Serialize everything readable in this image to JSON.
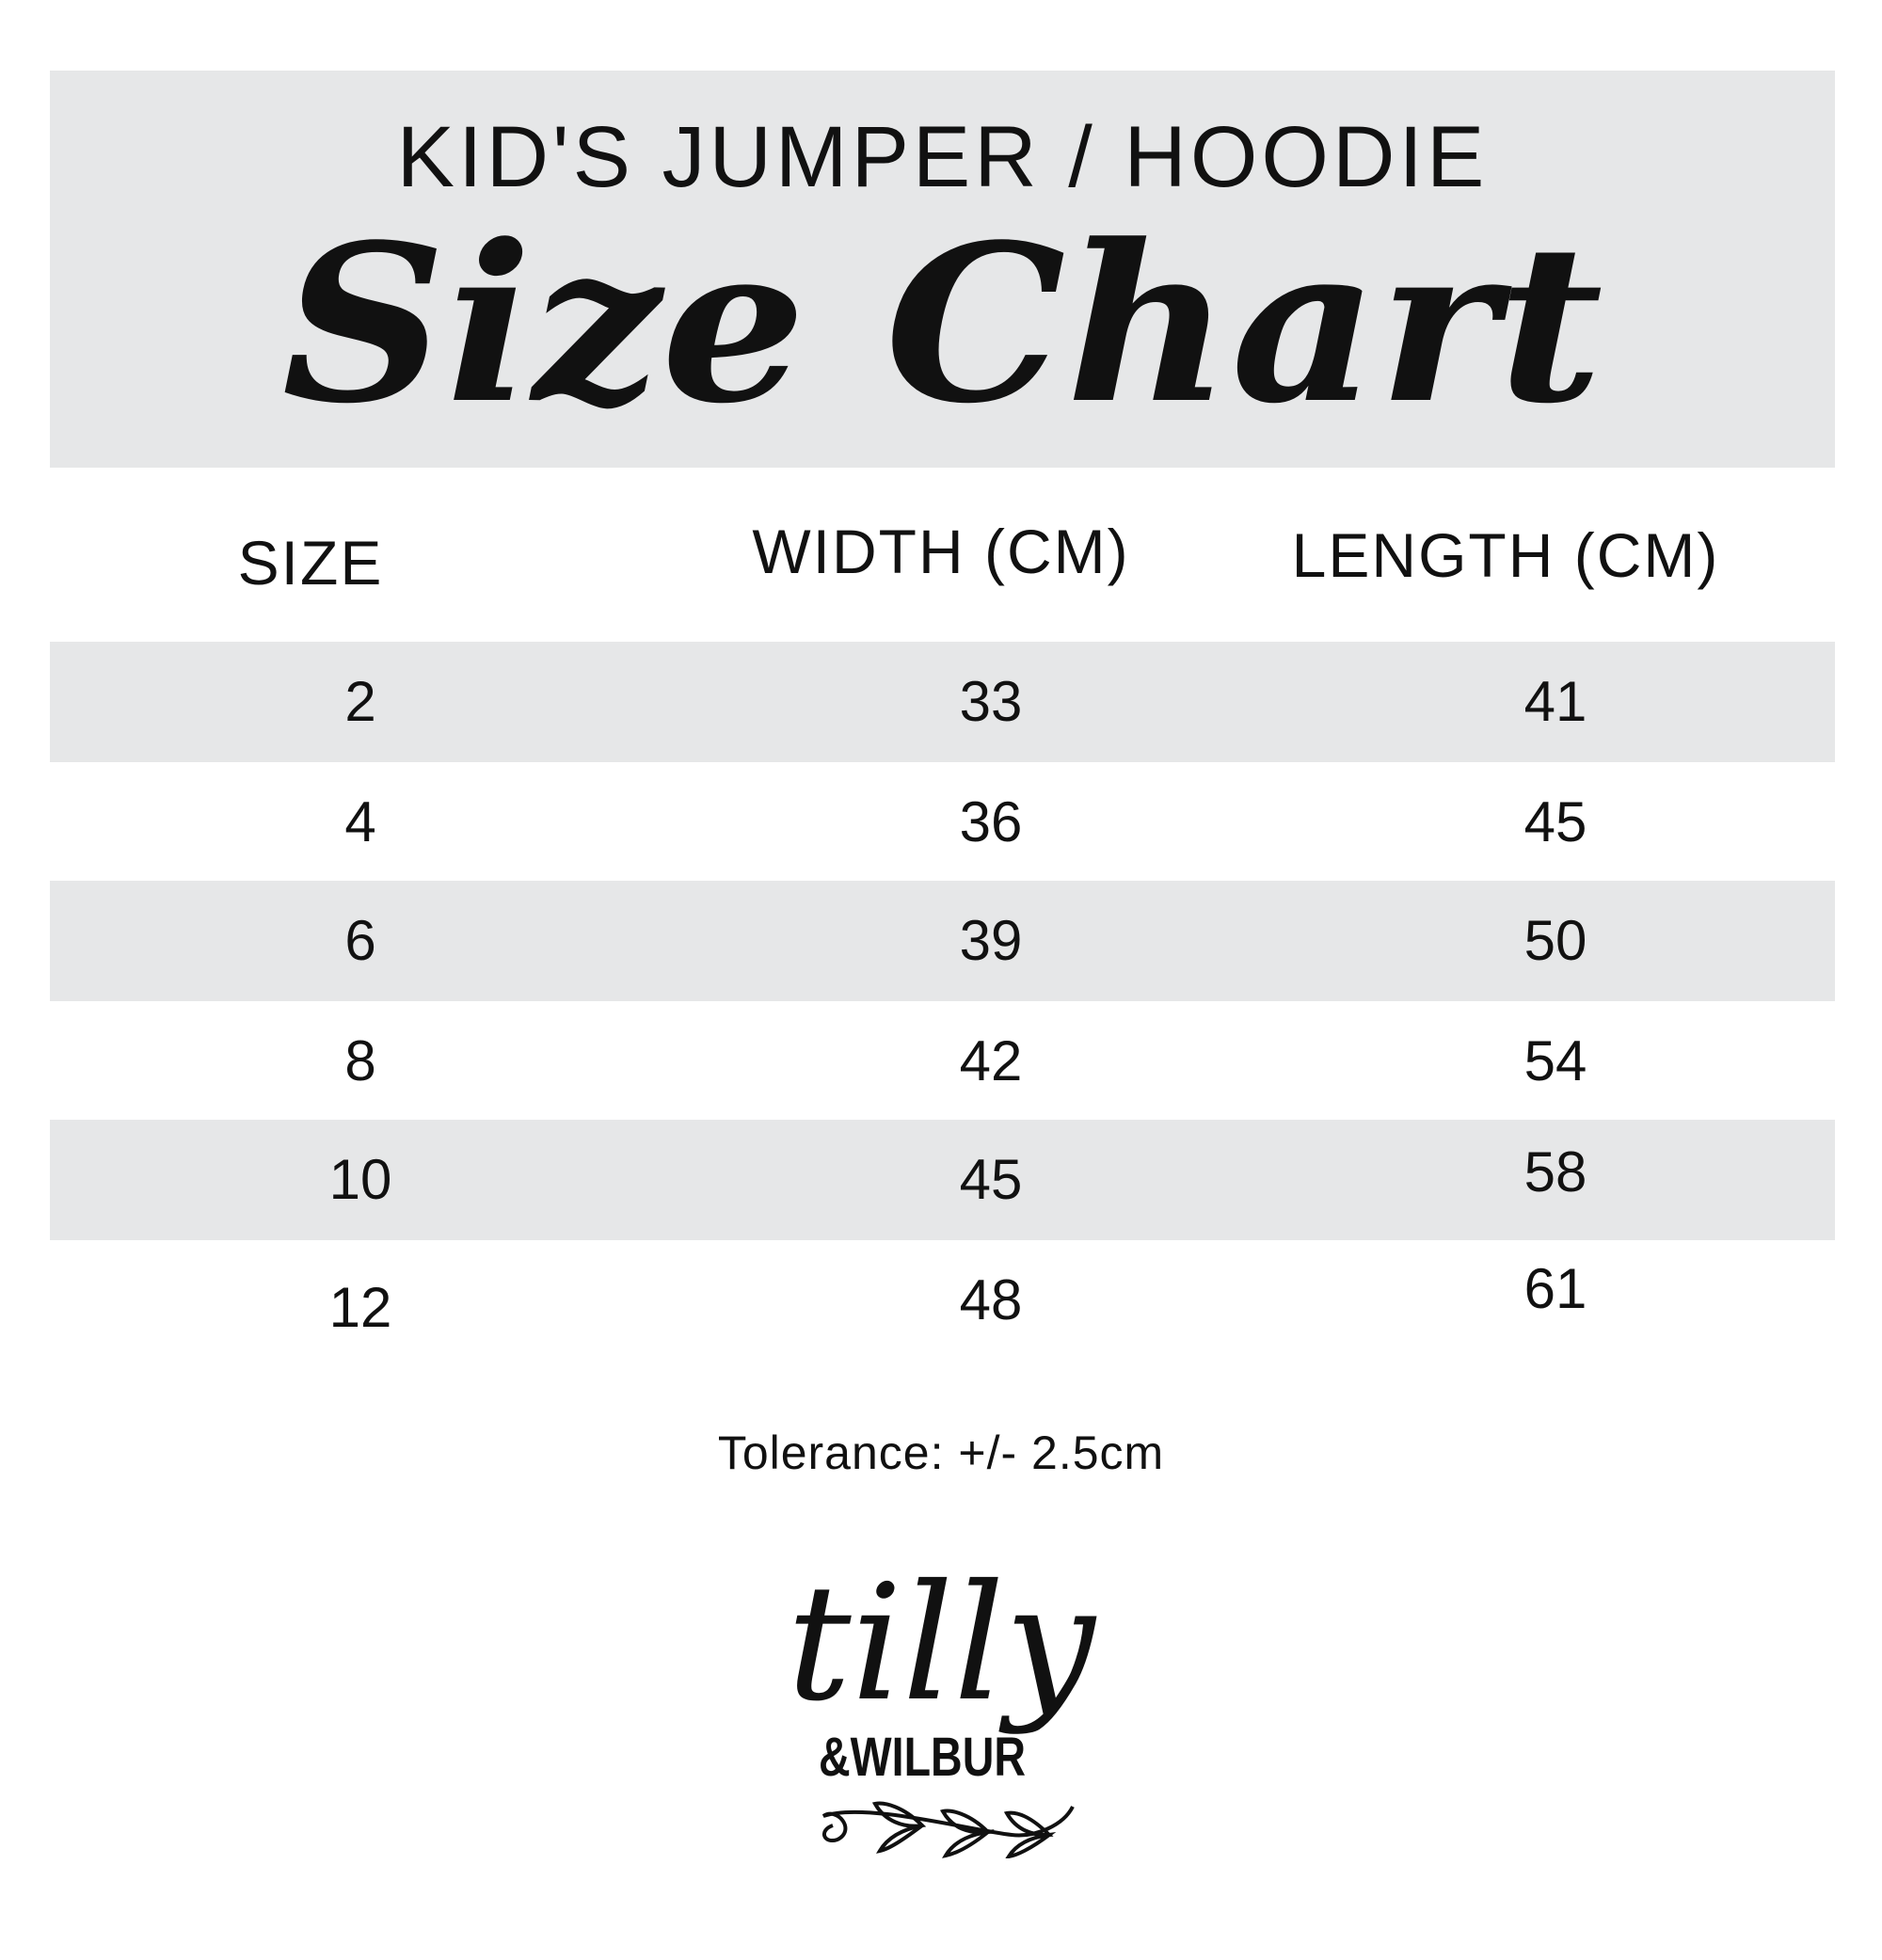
{
  "header": {
    "subtitle": "KID'S JUMPER / HOODIE",
    "title": "Size Chart"
  },
  "table": {
    "columns": [
      "SIZE",
      "WIDTH (CM)",
      "LENGTH (CM)"
    ],
    "rows": [
      [
        "2",
        "33",
        "41"
      ],
      [
        "4",
        "36",
        "45"
      ],
      [
        "6",
        "39",
        "50"
      ],
      [
        "8",
        "42",
        "54"
      ],
      [
        "10",
        "45",
        "58"
      ],
      [
        "12",
        "48",
        "61"
      ]
    ]
  },
  "footer": {
    "tolerance": "Tolerance: +/- 2.5cm"
  },
  "logo": {
    "line1": "tilly",
    "line2": "&WILBUR"
  },
  "colors": {
    "band": "#e6e7e8",
    "text": "#111111"
  }
}
